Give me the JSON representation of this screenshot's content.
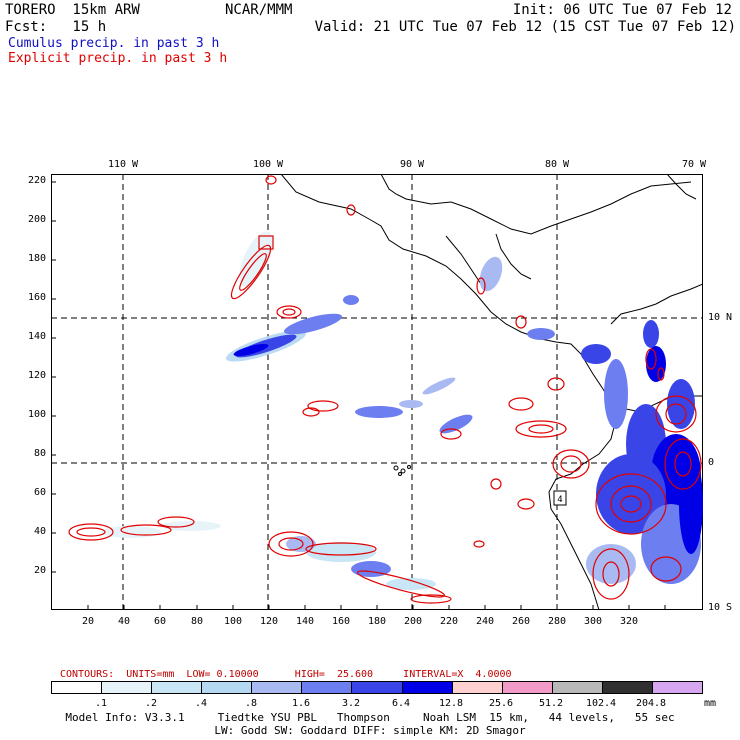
{
  "header": {
    "model": "TORERO  15km ARW",
    "org": "NCAR/MMM",
    "init": "Init: 06 UTC Tue 07 Feb 12",
    "fcst": "Fcst:   15 h",
    "valid": "Valid: 21 UTC Tue 07 Feb 12 (15 CST Tue 07 Feb 12)",
    "cumulus": "Cumulus precip. in past 3 h",
    "explicit": "Explicit precip. in past 3 h",
    "cumulus_color": "#1010c0",
    "explicit_color": "#e00000"
  },
  "map": {
    "lon_labels": [
      "110 W",
      "100 W",
      "90 W",
      "80 W",
      "70 W"
    ],
    "lat_labels": [
      "10 N",
      "0",
      "10 S"
    ],
    "y_ticks": [
      "220",
      "200",
      "180",
      "160",
      "140",
      "120",
      "100",
      "80",
      "60",
      "40",
      "20"
    ],
    "x_ticks": [
      "20",
      "40",
      "60",
      "80",
      "100",
      "120",
      "140",
      "160",
      "180",
      "200",
      "220",
      "240",
      "260",
      "280",
      "300",
      "320"
    ]
  },
  "legend": {
    "contours": "CONTOURS:  UNITS=mm  LOW= 0.10000      HIGH=  25.600     INTERVAL=X  4.0000",
    "levels": [
      ".1",
      ".2",
      ".4",
      ".8",
      "1.6",
      "3.2",
      "6.4",
      "12.8",
      "25.6",
      "51.2",
      "102.4",
      "204.8"
    ],
    "units": "mm",
    "colors": [
      "#ffffff",
      "#e6f4fa",
      "#c8e6f5",
      "#b4d7f2",
      "#a9b9f2",
      "#6c7ef0",
      "#3a45e8",
      "#0000e6",
      "#ffd0d0",
      "#f39bc8",
      "#b8b8b8",
      "#303030",
      "#d7a6f0"
    ]
  },
  "footer": {
    "line1": "Model Info: V3.3.1     Tiedtke YSU PBL   Thompson     Noah LSM  15 km,   44 levels,   55 sec",
    "line2": "LW: Godd SW: Goddard DIFF: simple KM: 2D Smagor"
  }
}
